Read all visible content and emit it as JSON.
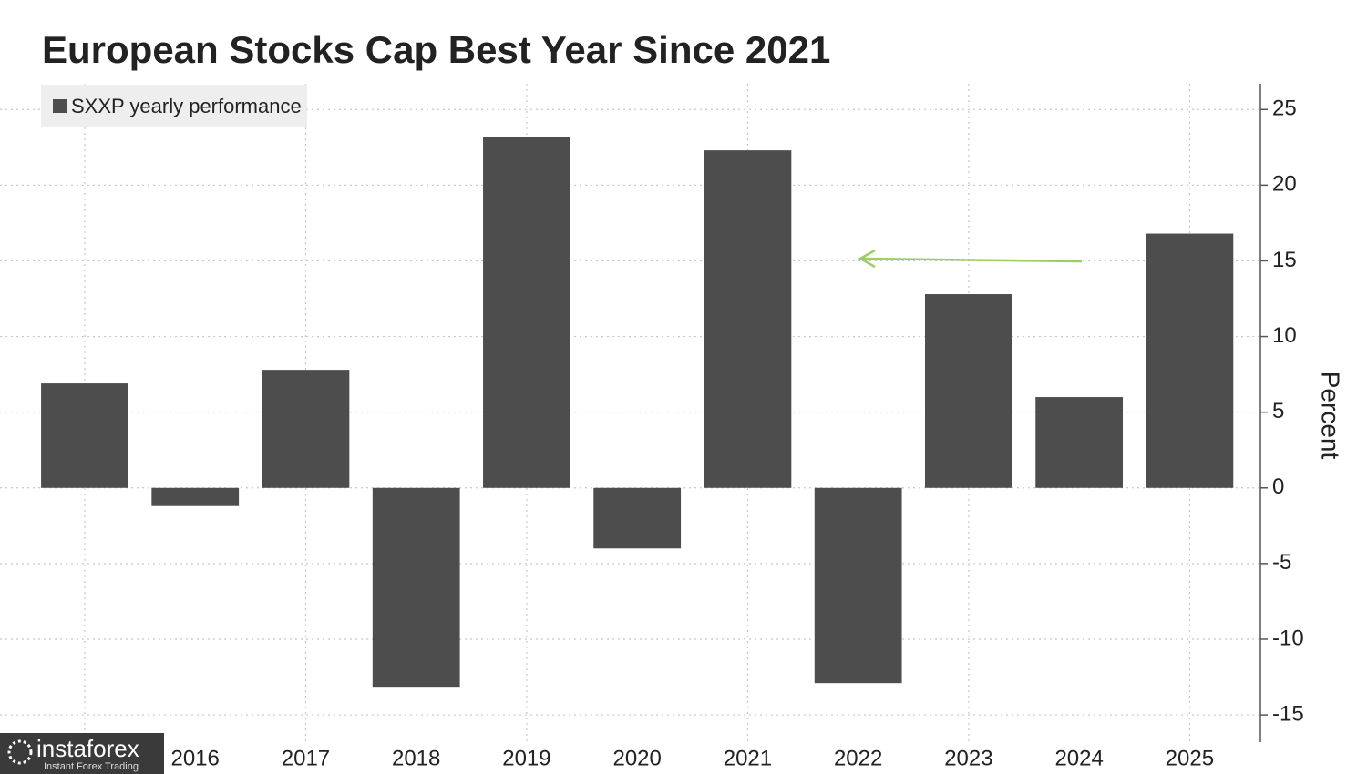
{
  "chart_data": {
    "type": "bar",
    "title": "European Stocks Cap Best Year Since 2021",
    "categories": [
      null,
      "2016",
      "2017",
      "2018",
      "2019",
      "2020",
      "2021",
      "2022",
      "2023",
      "2024",
      "2025"
    ],
    "series": [
      {
        "name": "SXXP yearly performance",
        "color": "#4d4d4d",
        "values": [
          6.9,
          -1.2,
          7.8,
          -13.2,
          23.2,
          -4.0,
          22.3,
          -12.9,
          12.8,
          6.0,
          16.8
        ]
      }
    ],
    "ylim": [
      -16.8,
      26.7
    ],
    "yticks": [
      -15,
      -10,
      -5,
      0,
      5,
      10,
      15,
      20,
      25
    ],
    "y_label": "Percent",
    "grid": true,
    "legend": "top-left"
  },
  "watermark": {
    "brand": "instaforex",
    "tagline": "Instant Forex Trading"
  }
}
